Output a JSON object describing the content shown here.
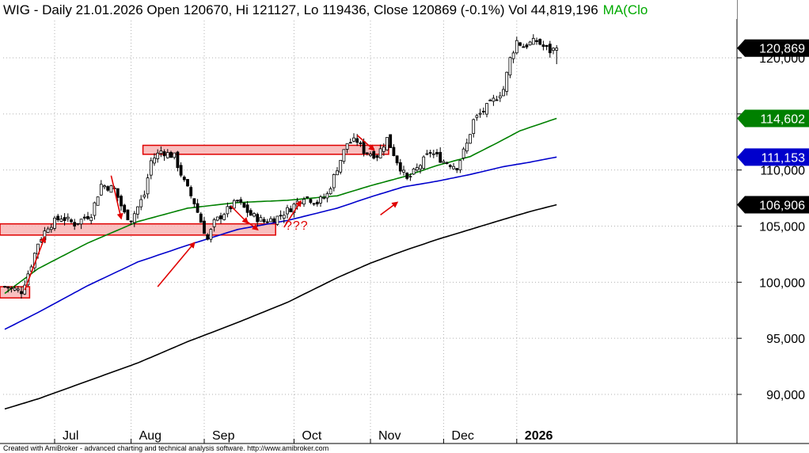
{
  "header": {
    "title": "WIG - Daily 21.01.2026 Open 120670, Hi 121127, Lo 119436, Close 120869 (-0.1%) Vol 44,819,196",
    "ma_label": "MA(Clo"
  },
  "footer": {
    "credit": "Created with AmiBroker - advanced charting and technical analysis software. http://www.amibroker.com"
  },
  "annotation": {
    "question_marks": "???"
  },
  "colors": {
    "candle": "#000000",
    "ma_short": "#008000",
    "ma_mid": "#0000cc",
    "ma_long": "#000000",
    "arrow": "#e00000",
    "box_fill": "#f8b4b4",
    "box_stroke": "#e00000"
  },
  "price_tags": [
    {
      "label": "120,869",
      "value": 120869,
      "bg": "#000000",
      "fg": "#ffffff"
    },
    {
      "label": "114,602",
      "value": 114602,
      "bg": "#008000",
      "fg": "#ffffff"
    },
    {
      "label": "111,153",
      "value": 111153,
      "bg": "#0000cc",
      "fg": "#ffffff"
    },
    {
      "label": "106,906",
      "value": 106906,
      "bg": "#000000",
      "fg": "#ffffff"
    }
  ],
  "chart_data": {
    "type": "candlestick",
    "ylim": [
      86500,
      124500
    ],
    "y_ticks": [
      {
        "value": 90000,
        "label": "90,000"
      },
      {
        "value": 95000,
        "label": "95,000"
      },
      {
        "value": 100000,
        "label": "100,000"
      },
      {
        "value": 105000,
        "label": "105,000"
      },
      {
        "value": 110000,
        "label": "110,000"
      },
      {
        "value": 115000,
        "label": "115,000"
      },
      {
        "value": 120000,
        "label": "120,000"
      }
    ],
    "x_ticks": [
      {
        "label": "Jul",
        "bar": 15
      },
      {
        "label": "Aug",
        "bar": 38
      },
      {
        "label": "Sep",
        "bar": 60
      },
      {
        "label": "Oct",
        "bar": 87
      },
      {
        "label": "Nov",
        "bar": 110
      },
      {
        "label": "Dec",
        "bar": 132
      },
      {
        "label": "2026",
        "bar": 154
      }
    ],
    "close_path": [
      [
        0,
        99600
      ],
      [
        5,
        99200
      ],
      [
        8,
        101600
      ],
      [
        10,
        103500
      ],
      [
        13,
        105000
      ],
      [
        17,
        105800
      ],
      [
        21,
        105200
      ],
      [
        26,
        106100
      ],
      [
        29,
        108700
      ],
      [
        33,
        108300
      ],
      [
        36,
        106100
      ],
      [
        38,
        105600
      ],
      [
        42,
        107800
      ],
      [
        44,
        110800
      ],
      [
        47,
        111700
      ],
      [
        51,
        111200
      ],
      [
        54,
        108900
      ],
      [
        57,
        107100
      ],
      [
        59,
        105400
      ],
      [
        61,
        103800
      ],
      [
        63,
        105300
      ],
      [
        66,
        106200
      ],
      [
        70,
        107200
      ],
      [
        74,
        106000
      ],
      [
        78,
        105400
      ],
      [
        82,
        105800
      ],
      [
        86,
        106600
      ],
      [
        90,
        107700
      ],
      [
        94,
        107100
      ],
      [
        97,
        107800
      ],
      [
        100,
        110200
      ],
      [
        103,
        112400
      ],
      [
        106,
        112600
      ],
      [
        108,
        111700
      ],
      [
        112,
        111300
      ],
      [
        115,
        112800
      ],
      [
        118,
        110800
      ],
      [
        121,
        109100
      ],
      [
        124,
        110100
      ],
      [
        128,
        111600
      ],
      [
        132,
        110800
      ],
      [
        136,
        110300
      ],
      [
        139,
        112300
      ],
      [
        141,
        114400
      ],
      [
        144,
        115300
      ],
      [
        147,
        116200
      ],
      [
        150,
        117200
      ],
      [
        152,
        119900
      ],
      [
        154,
        121500
      ],
      [
        156,
        121000
      ],
      [
        158,
        121300
      ],
      [
        160,
        121500
      ],
      [
        162,
        121000
      ],
      [
        164,
        120600
      ],
      [
        166,
        120869
      ]
    ],
    "ma_short": [
      [
        0,
        99000
      ],
      [
        10,
        101200
      ],
      [
        25,
        103500
      ],
      [
        40,
        105400
      ],
      [
        55,
        106600
      ],
      [
        70,
        107100
      ],
      [
        85,
        107300
      ],
      [
        100,
        107700
      ],
      [
        110,
        108600
      ],
      [
        120,
        109400
      ],
      [
        130,
        110400
      ],
      [
        140,
        111200
      ],
      [
        148,
        112400
      ],
      [
        155,
        113500
      ],
      [
        166,
        114602
      ]
    ],
    "ma_mid": [
      [
        0,
        95800
      ],
      [
        10,
        97300
      ],
      [
        25,
        99700
      ],
      [
        40,
        101800
      ],
      [
        55,
        103300
      ],
      [
        70,
        104700
      ],
      [
        85,
        105500
      ],
      [
        100,
        106600
      ],
      [
        110,
        107600
      ],
      [
        120,
        108500
      ],
      [
        130,
        109000
      ],
      [
        140,
        109600
      ],
      [
        150,
        110300
      ],
      [
        158,
        110700
      ],
      [
        166,
        111153
      ]
    ],
    "ma_long": [
      [
        0,
        88700
      ],
      [
        10,
        89600
      ],
      [
        25,
        91200
      ],
      [
        40,
        92800
      ],
      [
        55,
        94700
      ],
      [
        70,
        96400
      ],
      [
        85,
        98200
      ],
      [
        100,
        100400
      ],
      [
        110,
        101700
      ],
      [
        120,
        102800
      ],
      [
        130,
        103800
      ],
      [
        140,
        104700
      ],
      [
        150,
        105600
      ],
      [
        158,
        106300
      ],
      [
        166,
        106906
      ]
    ],
    "resistance_boxes": [
      {
        "bar_from": 0,
        "bar_to": 7,
        "y_low": 98600,
        "y_high": 99600
      },
      {
        "bar_from": 0,
        "bar_to": 81,
        "y_low": 104200,
        "y_high": 105200
      },
      {
        "bar_from": 43,
        "bar_to": 115,
        "y_low": 111400,
        "y_high": 112200
      }
    ],
    "arrows": [
      {
        "from": [
          6,
          99300
        ],
        "to": [
          12,
          104000
        ]
      },
      {
        "from": [
          32,
          109500
        ],
        "to": [
          35,
          105700
        ]
      },
      {
        "from": [
          46,
          99600
        ],
        "to": [
          57,
          103500
        ]
      },
      {
        "from": [
          68,
          106800
        ],
        "to": [
          73,
          105300
        ]
      },
      {
        "from": [
          72,
          105600
        ],
        "to": [
          76,
          104700
        ]
      },
      {
        "from": [
          84,
          104900
        ],
        "to": [
          89,
          107200
        ]
      },
      {
        "from": [
          106,
          113100
        ],
        "to": [
          111,
          111800
        ]
      },
      {
        "from": [
          113,
          106000
        ],
        "to": [
          118,
          107100
        ]
      }
    ]
  }
}
